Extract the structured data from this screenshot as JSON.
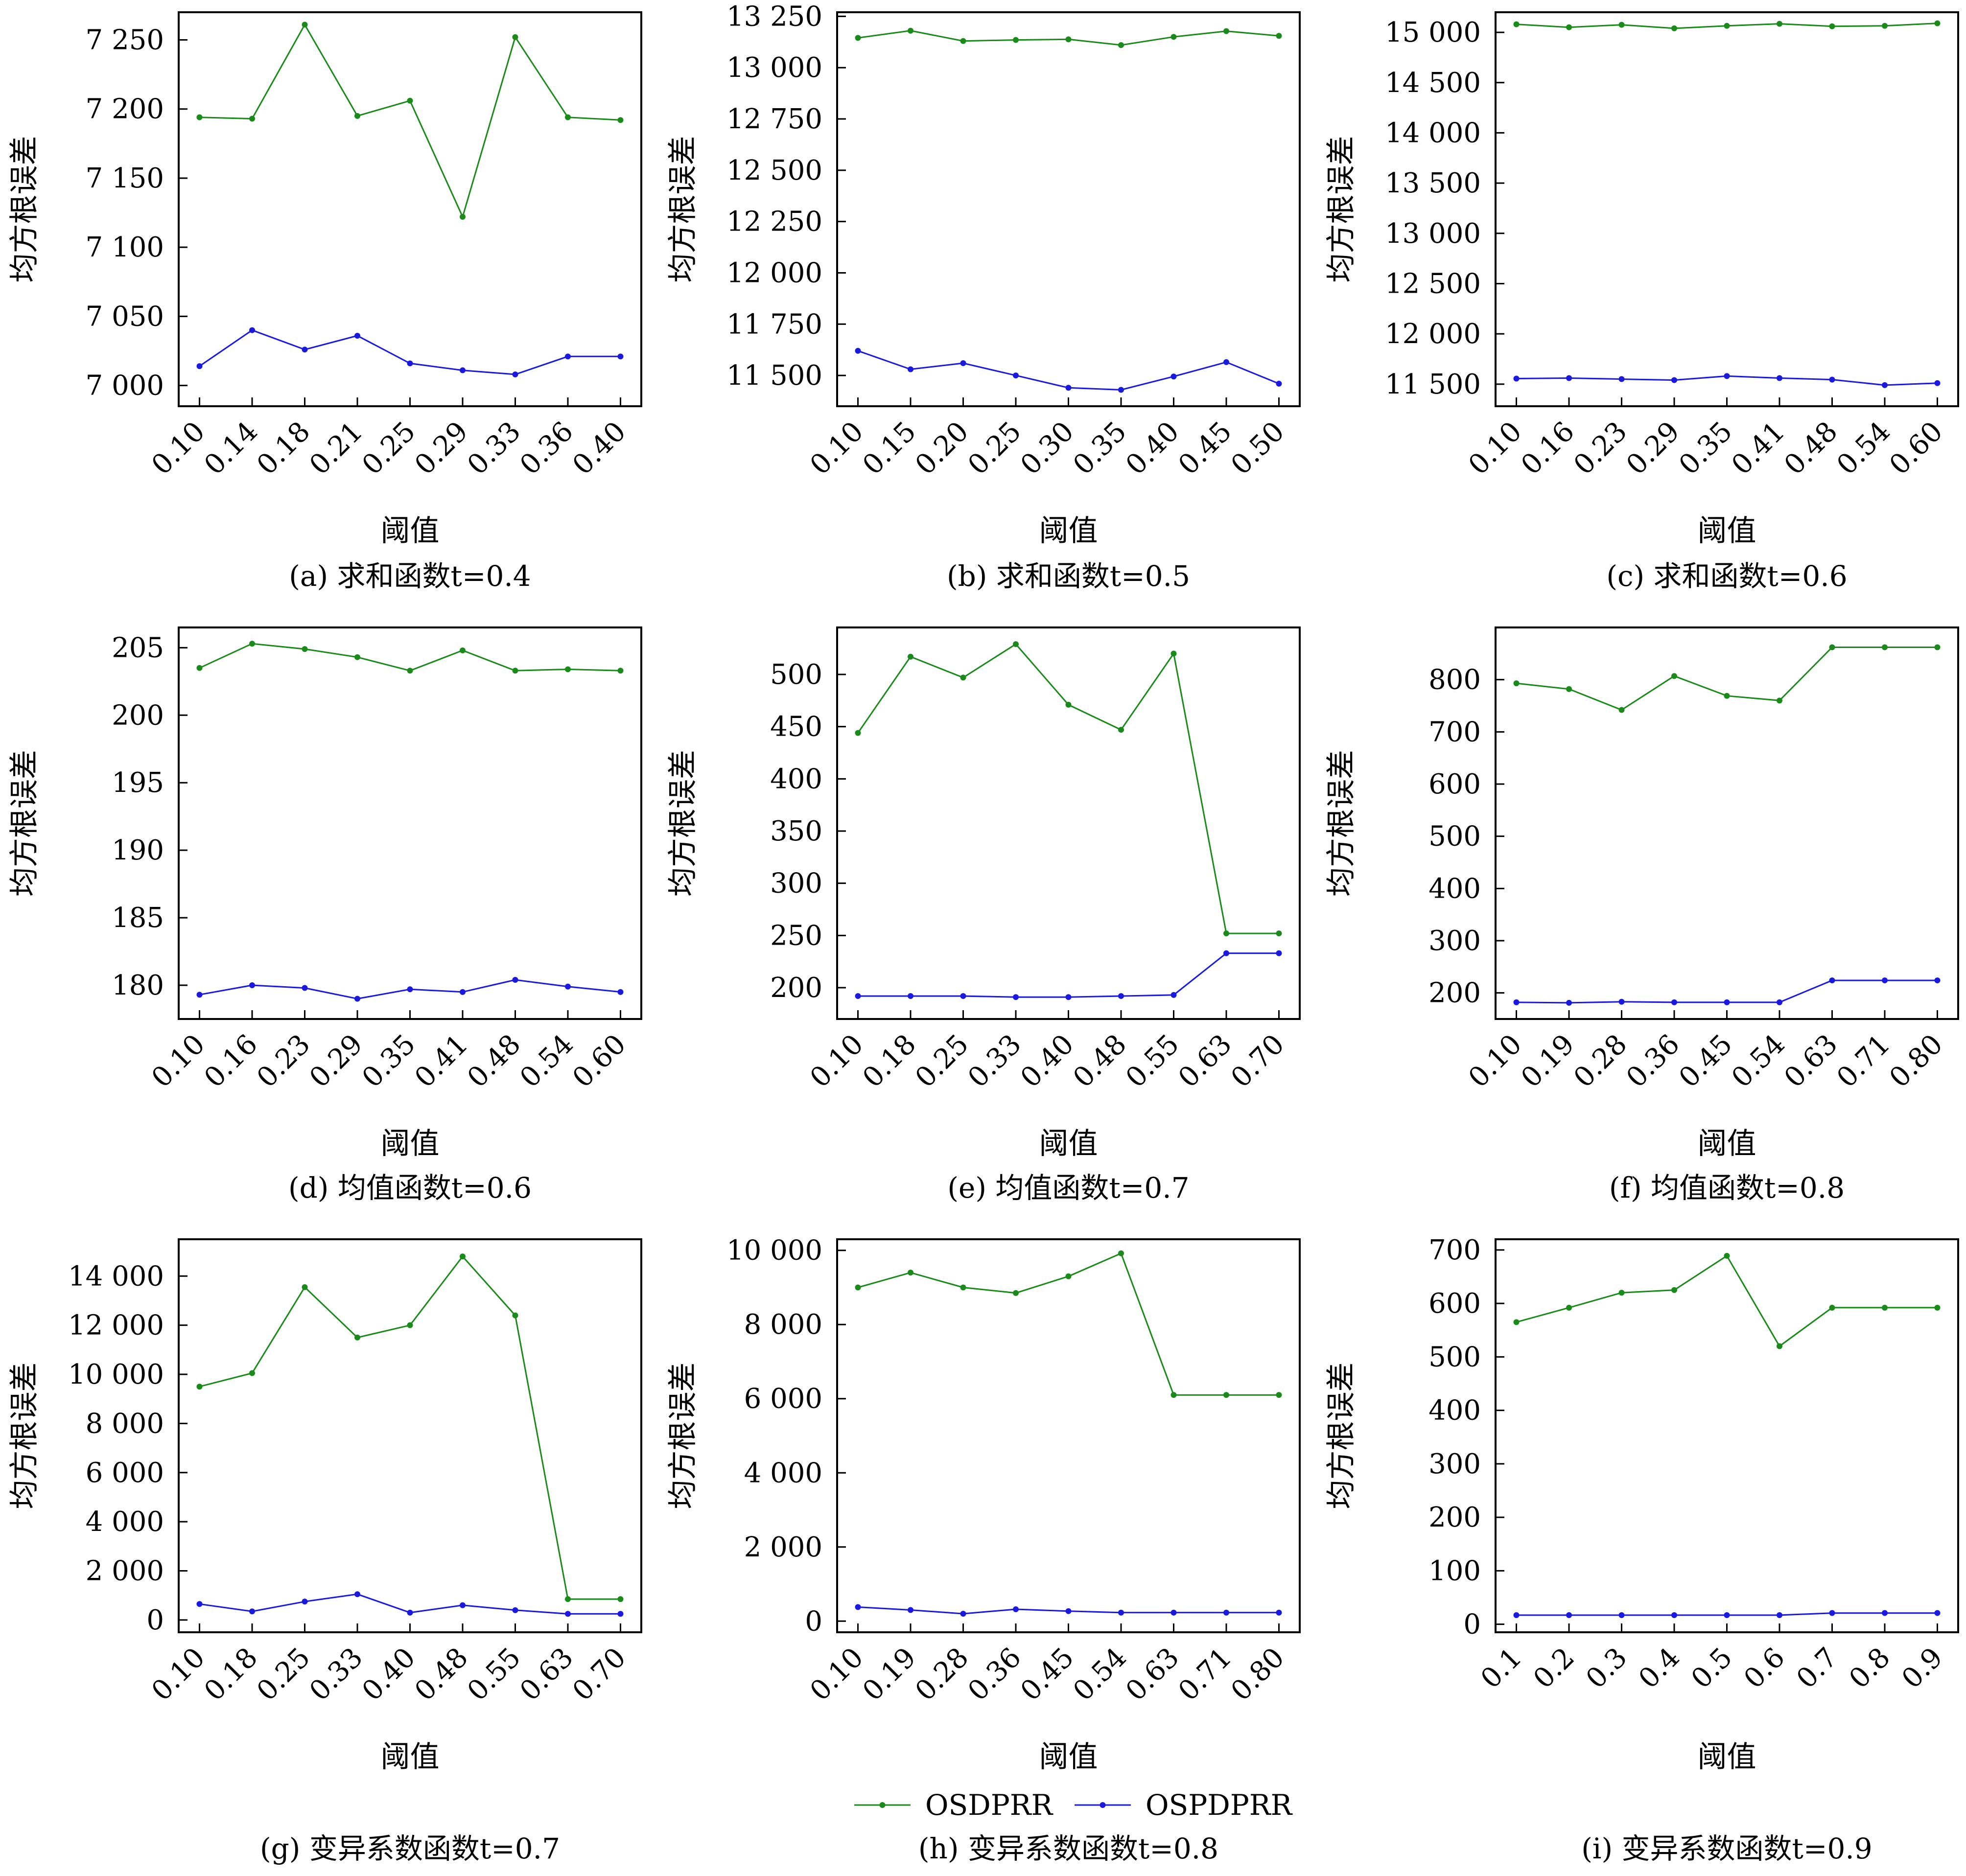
{
  "colors": {
    "OSDPRR": "#1a8a1a",
    "OSPDPRR": "#1a1adf"
  },
  "legend": [
    {
      "series": "OSDPRR",
      "label": "OSDPRR"
    },
    {
      "series": "OSPDPRR",
      "label": "OSPDPRR"
    }
  ],
  "chart_data": [
    {
      "type": "line",
      "caption": "(a) 求和函数t=0.4",
      "xlabel": "阈值",
      "ylabel": "均方根误差",
      "categories": [
        "0.10",
        "0.14",
        "0.18",
        "0.21",
        "0.25",
        "0.29",
        "0.33",
        "0.36",
        "0.40"
      ],
      "ylim": [
        6985,
        7270
      ],
      "yticks": [
        7000,
        7050,
        7100,
        7150,
        7200,
        7250
      ],
      "ytick_labels": [
        "7 000",
        "7 050",
        "7 100",
        "7 150",
        "7 200",
        "7 250"
      ],
      "series": [
        {
          "name": "OSDPRR",
          "values": [
            7194,
            7193,
            7261,
            7195,
            7206,
            7122,
            7252,
            7194,
            7192
          ]
        },
        {
          "name": "OSPDPRR",
          "values": [
            7014,
            7040,
            7026,
            7036,
            7016,
            7011,
            7008,
            7021,
            7021
          ]
        }
      ]
    },
    {
      "type": "line",
      "caption": "(b) 求和函数t=0.5",
      "xlabel": "阈值",
      "ylabel": "均方根误差",
      "categories": [
        "0.10",
        "0.15",
        "0.20",
        "0.25",
        "0.30",
        "0.35",
        "0.40",
        "0.45",
        "0.50"
      ],
      "ylim": [
        11350,
        13270
      ],
      "yticks": [
        11500,
        11750,
        12000,
        12250,
        12500,
        12750,
        13000,
        13250
      ],
      "ytick_labels": [
        "11 500",
        "11 750",
        "12 000",
        "12 250",
        "12 500",
        "12 750",
        "13 000",
        "13 250"
      ],
      "series": [
        {
          "name": "OSDPRR",
          "values": [
            13145,
            13180,
            13130,
            13135,
            13138,
            13110,
            13150,
            13178,
            13155
          ]
        },
        {
          "name": "OSPDPRR",
          "values": [
            11620,
            11530,
            11560,
            11500,
            11440,
            11430,
            11495,
            11565,
            11460
          ]
        }
      ]
    },
    {
      "type": "line",
      "caption": "(c) 求和函数t=0.6",
      "xlabel": "阈值",
      "ylabel": "均方根误差",
      "categories": [
        "0.10",
        "0.16",
        "0.23",
        "0.29",
        "0.35",
        "0.41",
        "0.48",
        "0.54",
        "0.60"
      ],
      "ylim": [
        11280,
        15200
      ],
      "yticks": [
        11500,
        12000,
        12500,
        13000,
        13500,
        14000,
        14500,
        15000
      ],
      "ytick_labels": [
        "11 500",
        "12 000",
        "12 500",
        "13 000",
        "13 500",
        "14 000",
        "14 500",
        "15 000"
      ],
      "series": [
        {
          "name": "OSDPRR",
          "values": [
            15080,
            15050,
            15075,
            15040,
            15065,
            15085,
            15060,
            15065,
            15090
          ]
        },
        {
          "name": "OSPDPRR",
          "values": [
            11555,
            11560,
            11550,
            11540,
            11580,
            11560,
            11545,
            11490,
            11510
          ]
        }
      ]
    },
    {
      "type": "line",
      "caption": "(d) 均值函数t=0.6",
      "xlabel": "阈值",
      "ylabel": "均方根误差",
      "categories": [
        "0.10",
        "0.16",
        "0.23",
        "0.29",
        "0.35",
        "0.41",
        "0.48",
        "0.54",
        "0.60"
      ],
      "ylim": [
        177.5,
        206.5
      ],
      "yticks": [
        180,
        185,
        190,
        195,
        200,
        205
      ],
      "ytick_labels": [
        "180",
        "185",
        "190",
        "195",
        "200",
        "205"
      ],
      "series": [
        {
          "name": "OSDPRR",
          "values": [
            203.5,
            205.3,
            204.9,
            204.3,
            203.3,
            204.8,
            203.3,
            203.4,
            203.3
          ]
        },
        {
          "name": "OSPDPRR",
          "values": [
            179.3,
            180.0,
            179.8,
            179.0,
            179.7,
            179.5,
            180.4,
            179.9,
            179.5
          ]
        }
      ]
    },
    {
      "type": "line",
      "caption": "(e) 均值函数t=0.7",
      "xlabel": "阈值",
      "ylabel": "均方根误差",
      "categories": [
        "0.10",
        "0.18",
        "0.25",
        "0.33",
        "0.40",
        "0.48",
        "0.55",
        "0.63",
        "0.70"
      ],
      "ylim": [
        170,
        545
      ],
      "yticks": [
        200,
        250,
        300,
        350,
        400,
        450,
        500
      ],
      "ytick_labels": [
        "200",
        "250",
        "300",
        "350",
        "400",
        "450",
        "500"
      ],
      "series": [
        {
          "name": "OSDPRR",
          "values": [
            444,
            517,
            497,
            529,
            471,
            447,
            520,
            252,
            252
          ]
        },
        {
          "name": "OSPDPRR",
          "values": [
            192,
            192,
            192,
            191,
            191,
            192,
            193,
            233,
            233
          ]
        }
      ]
    },
    {
      "type": "line",
      "caption": "(f) 均值函数t=0.8",
      "xlabel": "阈值",
      "ylabel": "均方根误差",
      "categories": [
        "0.10",
        "0.19",
        "0.28",
        "0.36",
        "0.45",
        "0.54",
        "0.63",
        "0.71",
        "0.80"
      ],
      "ylim": [
        150,
        900
      ],
      "yticks": [
        200,
        300,
        400,
        500,
        600,
        700,
        800
      ],
      "ytick_labels": [
        "200",
        "300",
        "400",
        "500",
        "600",
        "700",
        "800"
      ],
      "series": [
        {
          "name": "OSDPRR",
          "values": [
            793,
            782,
            742,
            807,
            769,
            760,
            862,
            862,
            862
          ]
        },
        {
          "name": "OSPDPRR",
          "values": [
            182,
            181,
            183,
            182,
            182,
            182,
            224,
            224,
            224
          ]
        }
      ]
    },
    {
      "type": "line",
      "caption": "(g) 变异系数函数t=0.7",
      "xlabel": "阈值",
      "ylabel": "均方根误差",
      "categories": [
        "0.10",
        "0.18",
        "0.25",
        "0.33",
        "0.40",
        "0.48",
        "0.55",
        "0.63",
        "0.70"
      ],
      "ylim": [
        -500,
        15500
      ],
      "yticks": [
        0,
        2000,
        4000,
        6000,
        8000,
        10000,
        12000,
        14000
      ],
      "ytick_labels": [
        "0",
        "2 000",
        "4 000",
        "6 000",
        "8 000",
        "10 000",
        "12 000",
        "14 000"
      ],
      "series": [
        {
          "name": "OSDPRR",
          "values": [
            9500,
            10050,
            13550,
            11500,
            12000,
            14800,
            12400,
            850,
            850
          ]
        },
        {
          "name": "OSPDPRR",
          "values": [
            650,
            350,
            750,
            1050,
            300,
            600,
            400,
            250,
            250
          ]
        }
      ]
    },
    {
      "type": "line",
      "caption": "(h) 变异系数函数t=0.8",
      "xlabel": "阈值",
      "ylabel": "均方根误差",
      "categories": [
        "0.10",
        "0.19",
        "0.28",
        "0.36",
        "0.45",
        "0.54",
        "0.63",
        "0.71",
        "0.80"
      ],
      "ylim": [
        -300,
        10300
      ],
      "yticks": [
        0,
        2000,
        4000,
        6000,
        8000,
        10000
      ],
      "ytick_labels": [
        "0",
        "2 000",
        "4 000",
        "6 000",
        "8 000",
        "10 000"
      ],
      "series": [
        {
          "name": "OSDPRR",
          "values": [
            9000,
            9400,
            9000,
            8850,
            9300,
            9920,
            6100,
            6100,
            6100
          ]
        },
        {
          "name": "OSPDPRR",
          "values": [
            380,
            300,
            200,
            320,
            270,
            230,
            230,
            230,
            230
          ]
        }
      ]
    },
    {
      "type": "line",
      "caption": "(i) 变异系数函数t=0.9",
      "xlabel": "阈值",
      "ylabel": "均方根误差",
      "categories": [
        "0.1",
        "0.2",
        "0.3",
        "0.4",
        "0.5",
        "0.6",
        "0.7",
        "0.8",
        "0.9"
      ],
      "ylim": [
        -15,
        720
      ],
      "yticks": [
        0,
        100,
        200,
        300,
        400,
        500,
        600,
        700
      ],
      "ytick_labels": [
        "0",
        "100",
        "200",
        "300",
        "400",
        "500",
        "600",
        "700"
      ],
      "series": [
        {
          "name": "OSDPRR",
          "values": [
            565,
            592,
            620,
            625,
            689,
            520,
            592,
            592,
            592
          ]
        },
        {
          "name": "OSPDPRR",
          "values": [
            17,
            17,
            17,
            17,
            17,
            17,
            21,
            21,
            21
          ]
        }
      ]
    }
  ]
}
